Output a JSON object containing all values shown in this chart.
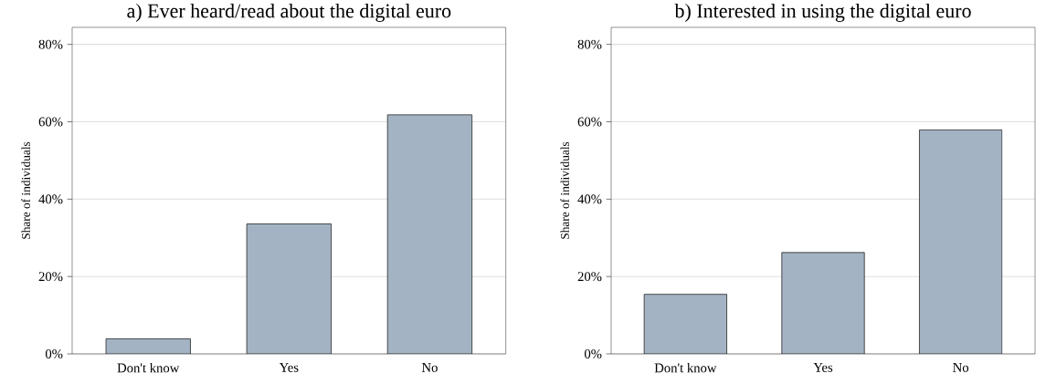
{
  "chart_data": [
    {
      "type": "bar",
      "title": "a) Ever heard/read about the digital euro",
      "ylabel": "Share of individuals",
      "categories": [
        "Don't know",
        "Yes",
        "No"
      ],
      "values": [
        3.9,
        33.6,
        61.8
      ],
      "color": "#a3b3c3",
      "ylim": [
        0,
        84.4
      ],
      "yticks": [
        {
          "value": 0,
          "label": "0%"
        },
        {
          "value": 20,
          "label": "20%"
        },
        {
          "value": 40,
          "label": "40%"
        },
        {
          "value": 60,
          "label": "60%"
        },
        {
          "value": 80,
          "label": "80%"
        }
      ],
      "grid": "y"
    },
    {
      "type": "bar",
      "title": "b) Interested in using the digital euro",
      "ylabel": "Share of individuals",
      "categories": [
        "Don't know",
        "Yes",
        "No"
      ],
      "values": [
        15.4,
        26.2,
        57.9
      ],
      "color": "#a3b3c3",
      "ylim": [
        0,
        84.4
      ],
      "yticks": [
        {
          "value": 0,
          "label": "0%"
        },
        {
          "value": 20,
          "label": "20%"
        },
        {
          "value": 40,
          "label": "40%"
        },
        {
          "value": 60,
          "label": "60%"
        },
        {
          "value": 80,
          "label": "80%"
        }
      ],
      "grid": "y"
    }
  ]
}
